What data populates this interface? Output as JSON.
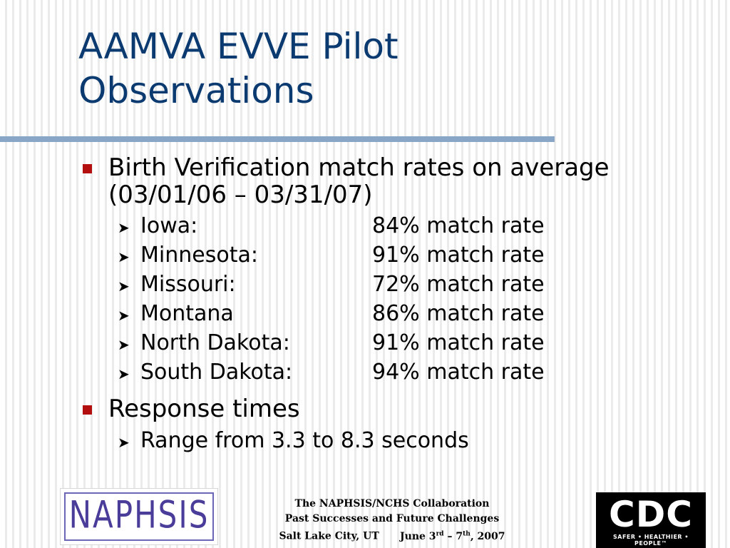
{
  "title": {
    "line1": "AAMVA EVVE Pilot",
    "line2": "Observations"
  },
  "bullets": [
    {
      "text": "Birth Verification match rates on average",
      "text2": "(03/01/06 – 03/31/07)",
      "items": [
        {
          "state": "Iowa:",
          "rate": "84% match rate"
        },
        {
          "state": "Minnesota:",
          "rate": "91% match rate"
        },
        {
          "state": "Missouri:",
          "rate": "72% match rate"
        },
        {
          "state": "Montana",
          "rate": "86% match rate"
        },
        {
          "state": "North Dakota:",
          "rate": "91% match rate"
        },
        {
          "state": "South Dakota:",
          "rate": "94% match rate"
        }
      ]
    },
    {
      "text": "Response times",
      "items": [
        {
          "text": "Range from 3.3 to 8.3 seconds"
        }
      ]
    }
  ],
  "footer": {
    "line1": "The NAPHSIS/NCHS Collaboration",
    "line2": "Past Successes and Future Challenges",
    "place": "Salt Lake City, UT",
    "date_day1": "June 3",
    "date_sup1": "rd",
    "date_dash": " – 7",
    "date_sup2": "th",
    "date_year": ", 2007"
  },
  "logos": {
    "naphsis": "NAPHSIS",
    "cdc": "CDC",
    "cdc_tagline": "SAFER • HEALTHIER • PEOPLE™"
  },
  "colors": {
    "title": "#0b3a70",
    "bullet_marker": "#b40f0f",
    "rule": "#8aa6c6"
  },
  "icons": {
    "bullet": "square-bullet-icon",
    "sub_bullet": "chevron-right-icon"
  }
}
